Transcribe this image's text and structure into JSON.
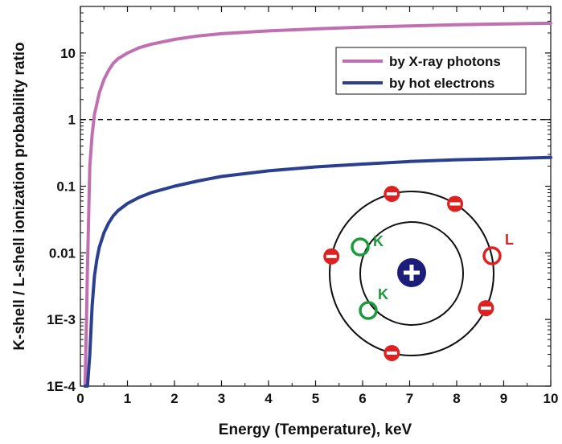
{
  "chart_data": {
    "type": "line",
    "title": "",
    "xlabel": "Energy (Temperature), keV",
    "ylabel": "K-shell / L-shell ionization probability ratio",
    "xlim": [
      0,
      10
    ],
    "ylim": [
      0.0001,
      50
    ],
    "yscale": "log",
    "grid": false,
    "legend_position": "top-right",
    "x_ticks": [
      "0",
      "1",
      "2",
      "3",
      "4",
      "5",
      "6",
      "7",
      "8",
      "9",
      "10"
    ],
    "y_ticks": [
      {
        "value": 0.0001,
        "label": "1E-4"
      },
      {
        "value": 0.001,
        "label": "1E-3"
      },
      {
        "value": 0.01,
        "label": "0.01"
      },
      {
        "value": 0.1,
        "label": "0.1"
      },
      {
        "value": 1,
        "label": "1"
      },
      {
        "value": 10,
        "label": "10"
      }
    ],
    "reference_line": {
      "y": 1,
      "style": "dashed"
    },
    "series": [
      {
        "name": "by X-ray photons",
        "color": "#c070b0",
        "x": [
          0.1,
          0.13,
          0.15,
          0.2,
          0.25,
          0.3,
          0.4,
          0.5,
          0.6,
          0.7,
          0.8,
          1,
          1.25,
          1.5,
          2,
          2.5,
          3,
          4,
          5,
          6,
          7,
          8,
          9,
          10
        ],
        "y": [
          0.0001,
          0.001,
          0.006,
          0.2,
          0.6,
          1.2,
          2.5,
          4,
          5.5,
          7,
          8.2,
          10,
          12,
          13.5,
          16,
          18,
          19.5,
          21.5,
          23,
          24.5,
          25.5,
          26.5,
          27.3,
          28
        ]
      },
      {
        "name": "by hot electrons",
        "color": "#2a3f8f",
        "x": [
          0.1,
          0.15,
          0.2,
          0.25,
          0.3,
          0.35,
          0.4,
          0.5,
          0.6,
          0.7,
          0.8,
          1,
          1.25,
          1.5,
          2,
          2.5,
          3,
          4,
          5,
          6,
          7,
          8,
          9,
          10
        ],
        "y": [
          0.0001,
          0.0001,
          0.0003,
          0.0016,
          0.0045,
          0.008,
          0.012,
          0.02,
          0.028,
          0.036,
          0.043,
          0.055,
          0.068,
          0.08,
          0.1,
          0.12,
          0.14,
          0.17,
          0.195,
          0.215,
          0.235,
          0.25,
          0.26,
          0.27
        ]
      }
    ],
    "inset_diagram": {
      "description_labels": [
        "K",
        "K",
        "L"
      ],
      "nucleus_symbol": "+",
      "electron_symbol": "−",
      "k_color": "#1a9a3a",
      "l_color": "#e02020",
      "nucleus_color": "#1c1c7a"
    }
  }
}
